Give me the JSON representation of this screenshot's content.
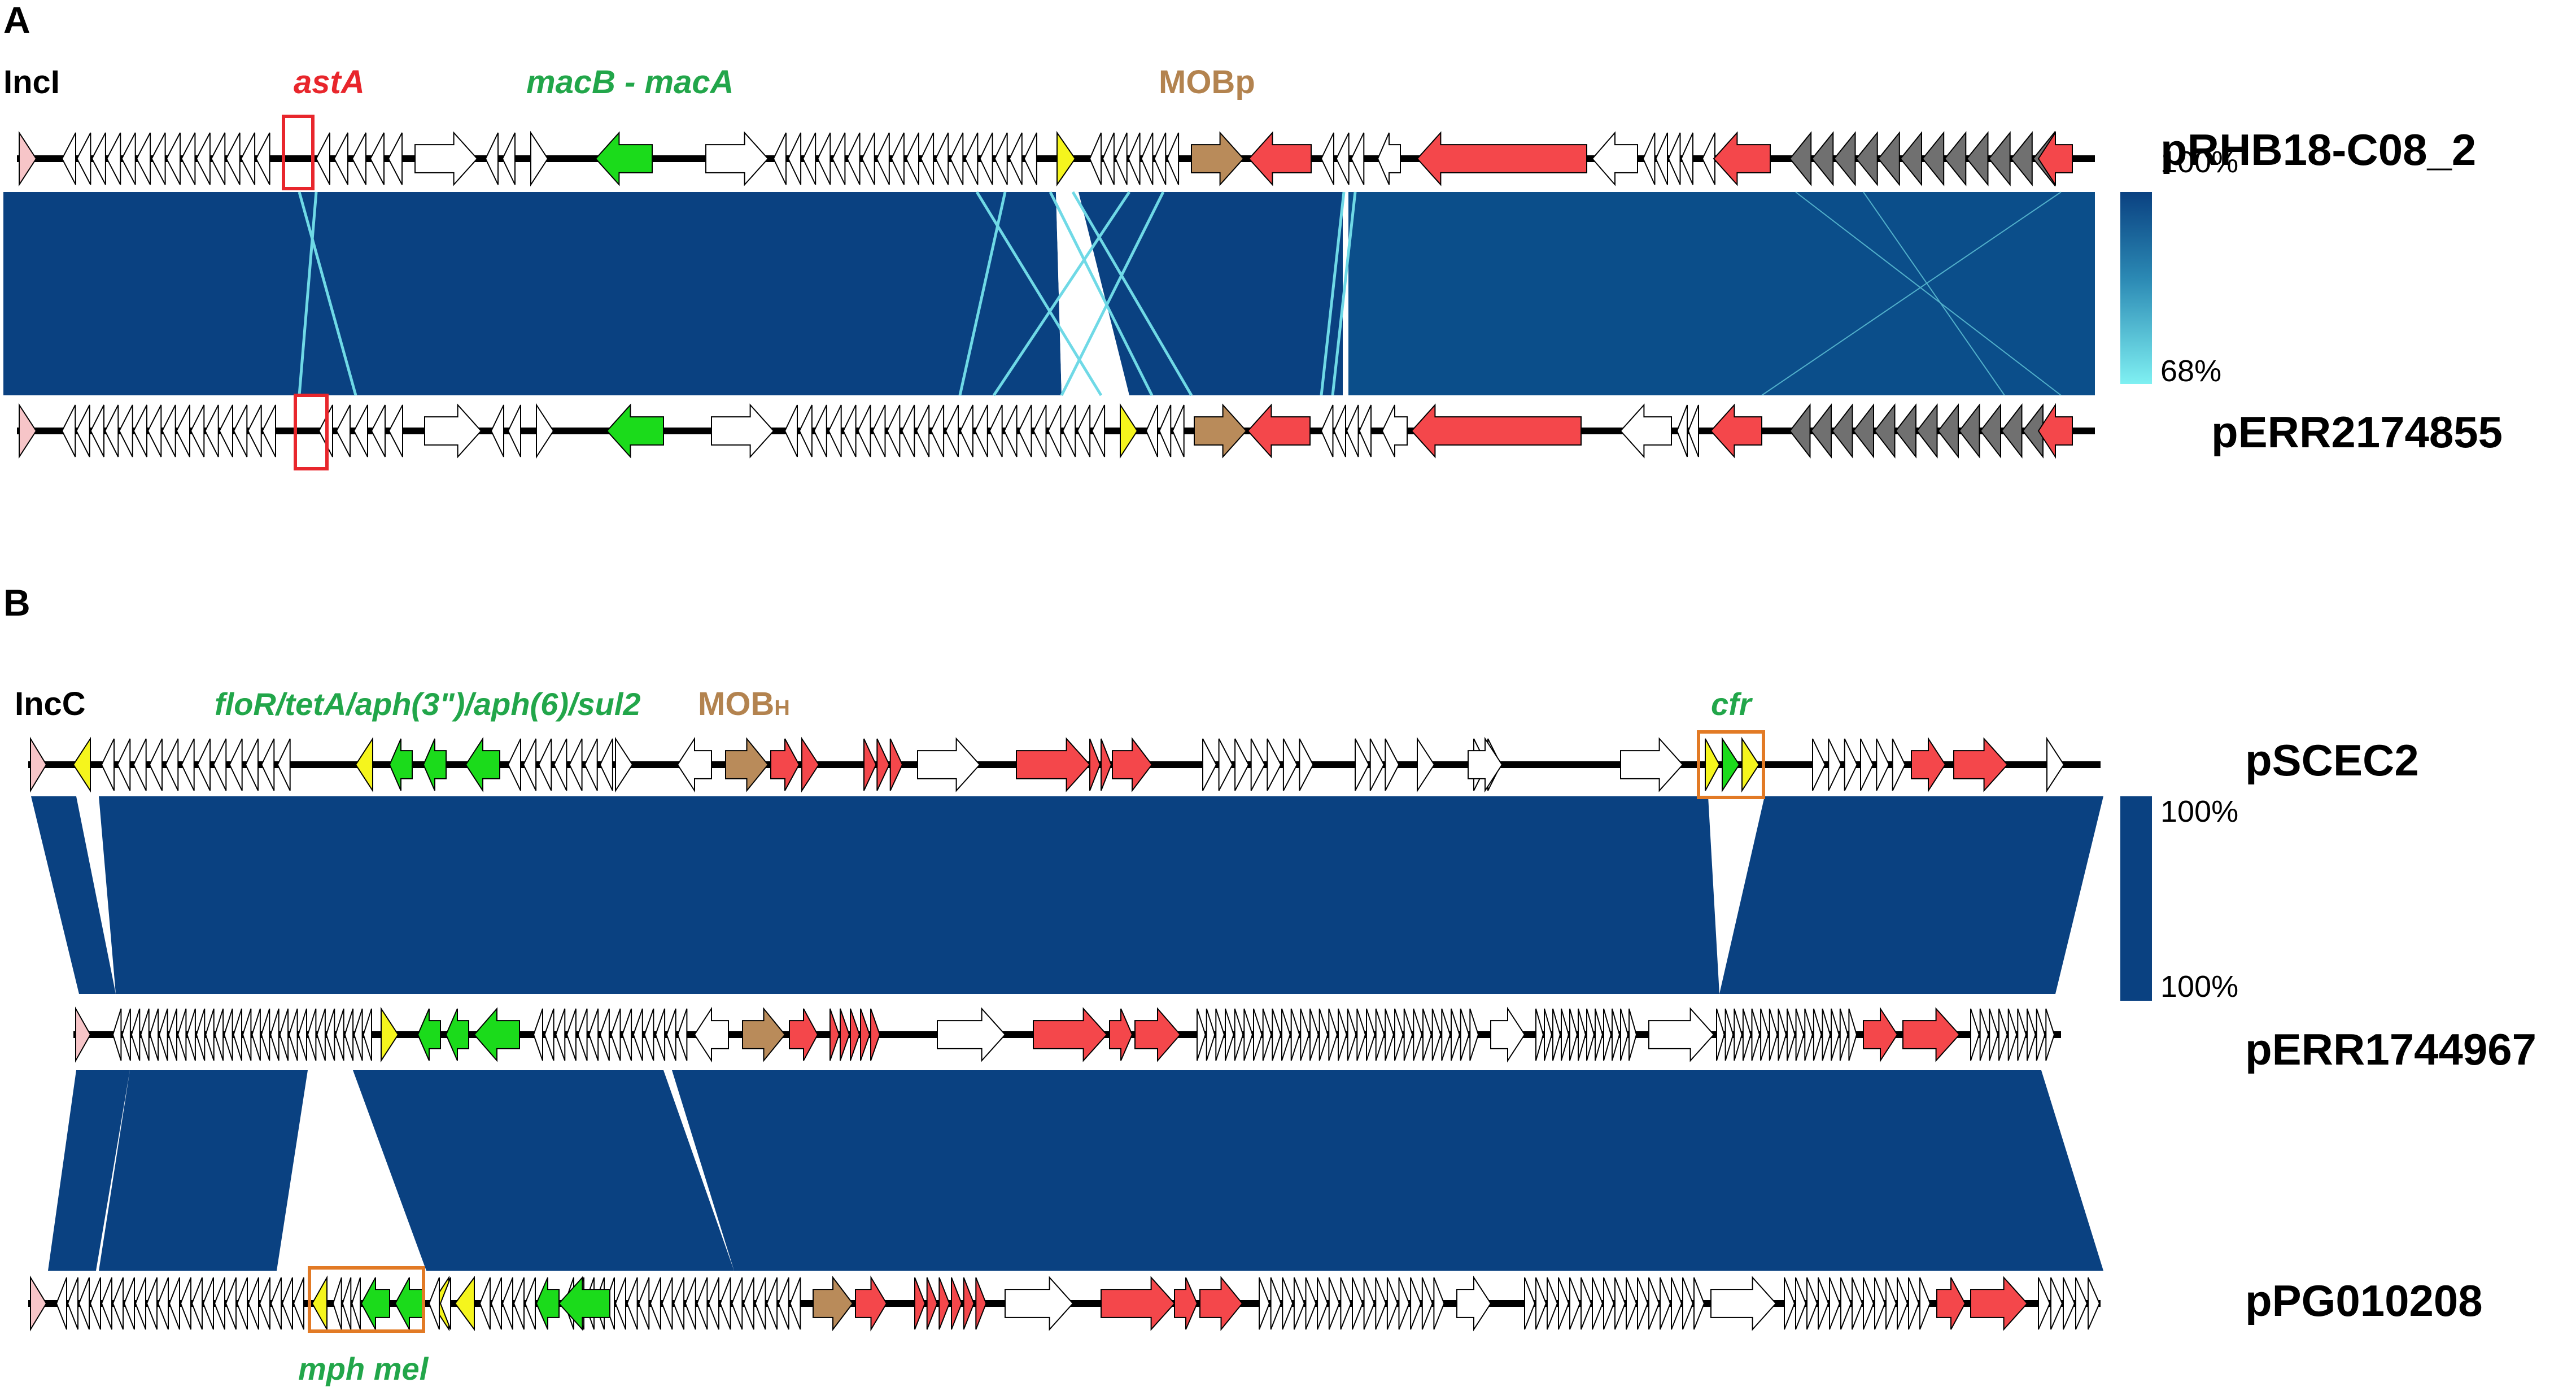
{
  "panelA": {
    "letter": "A",
    "replicon": "IncI",
    "gene_labels": {
      "astA": "astA",
      "mac": "macB - macA",
      "mob": "MOBp"
    },
    "plasmids": [
      "pRHB18-C08_2",
      "pERR2174855"
    ],
    "scale": {
      "max": "100%",
      "min": "68%"
    }
  },
  "panelB": {
    "letter": "B",
    "replicon": "IncC",
    "gene_labels": {
      "resistance": "floR/tetA/aph(3\")/aph(6)/sul2",
      "mob_main": "MOB",
      "mob_sub": "H",
      "cfr": "cfr",
      "mph": "mph mel"
    },
    "plasmids": [
      "pSCEC2",
      "pERR1744967",
      "pPG010208"
    ],
    "scale": {
      "max": "100%",
      "min": "100%"
    }
  },
  "colors": {
    "block": "#0a4181",
    "white_gene": "#ffffff",
    "red": "#f4474b",
    "green": "#1bdb1b",
    "yellow": "#f5f51d",
    "brown": "#b98b5a",
    "gray": "#707070",
    "pink": "#f7c5c8",
    "label_red": "#e8262c",
    "label_green": "#22a64a",
    "label_brown": "#b3834f",
    "box_red": "#e8262c",
    "box_orange": "#e27a25",
    "gradient_light": "#7ff0f2"
  }
}
